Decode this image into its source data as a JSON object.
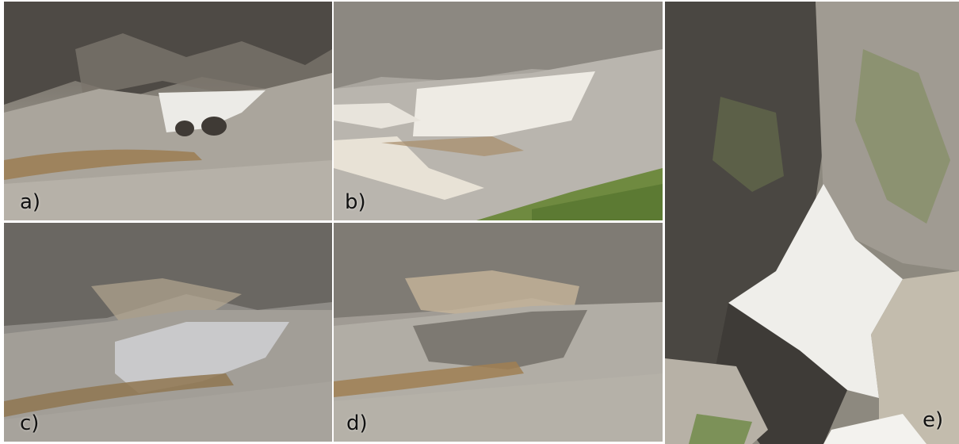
{
  "figure": {
    "panels": [
      {
        "id": "a",
        "label": "a)"
      },
      {
        "id": "b",
        "label": "b)"
      },
      {
        "id": "c",
        "label": "c)"
      },
      {
        "id": "d",
        "label": "d)"
      },
      {
        "id": "e",
        "label": "e)"
      }
    ]
  }
}
